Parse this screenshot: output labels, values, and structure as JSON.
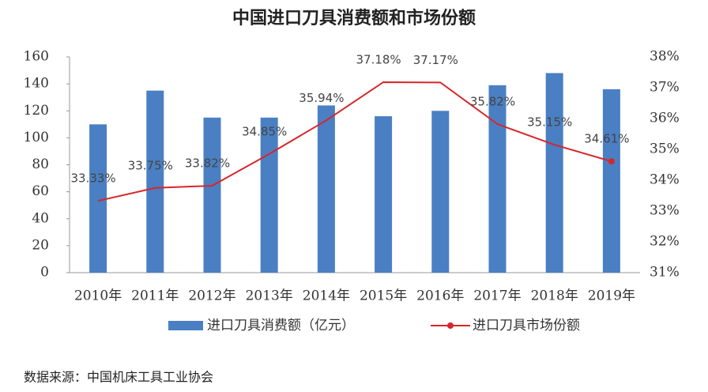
{
  "chart_data": {
    "type": "bar",
    "title": "中国进口刀具消费额和市场份额",
    "categories": [
      "2010年",
      "2011年",
      "2012年",
      "2013年",
      "2014年",
      "2015年",
      "2016年",
      "2017年",
      "2018年",
      "2019年"
    ],
    "series": [
      {
        "name": "进口刀具消费额（亿元）",
        "type": "bar",
        "color": "#4a7fc3",
        "values": [
          110,
          135,
          115,
          115,
          124,
          116,
          120,
          139,
          148,
          136
        ]
      },
      {
        "name": "进口刀具市场份额",
        "type": "line",
        "axis": "y2",
        "color": "#d7262b",
        "values": [
          33.33,
          33.75,
          33.82,
          34.85,
          35.94,
          37.18,
          37.17,
          35.82,
          35.15,
          34.61
        ],
        "value_labels": [
          "33.33%",
          "33.75%",
          "33.82%",
          "34.85%",
          "35.94%",
          "37.18%",
          "37.17%",
          "35.82%",
          "35.15%",
          "34.61%"
        ]
      }
    ],
    "ylim": [
      0,
      160
    ],
    "yticks": [
      0,
      20,
      40,
      60,
      80,
      100,
      120,
      140,
      160
    ],
    "y2lim": [
      31,
      38
    ],
    "y2ticks": [
      {
        "value": 31,
        "label": "31%"
      },
      {
        "value": 32,
        "label": "32%"
      },
      {
        "value": 33,
        "label": "33%"
      },
      {
        "value": 34,
        "label": "34%"
      },
      {
        "value": 35,
        "label": "35%"
      },
      {
        "value": 36,
        "label": "36%"
      },
      {
        "value": 37,
        "label": "37%"
      },
      {
        "value": 38,
        "label": "38%"
      }
    ],
    "source": "数据来源：中国机床工具工业协会"
  }
}
